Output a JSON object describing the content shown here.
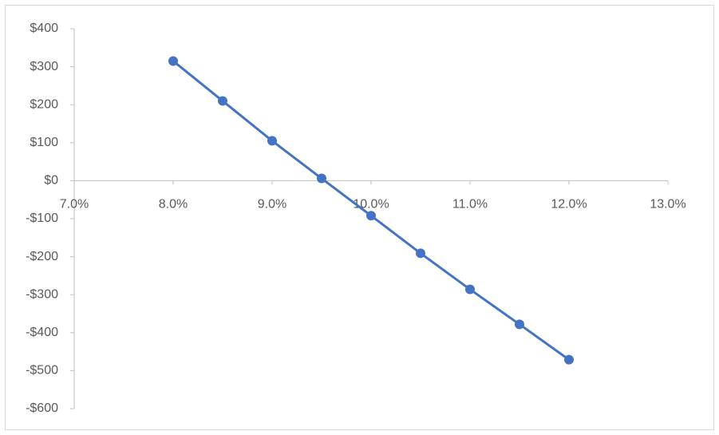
{
  "chart_data": {
    "type": "line",
    "x": [
      8.0,
      8.5,
      9.0,
      9.5,
      10.0,
      10.5,
      11.0,
      11.5,
      12.0
    ],
    "values": [
      315,
      210,
      105,
      6,
      -92,
      -191,
      -286,
      -378,
      -471
    ],
    "color": "#4472c4",
    "markers": true,
    "grid": false,
    "xlim": [
      7,
      13
    ],
    "xticks": [
      {
        "value": 7,
        "label": "7.0%"
      },
      {
        "value": 8,
        "label": "8.0%"
      },
      {
        "value": 9,
        "label": "9.0%"
      },
      {
        "value": 10,
        "label": "10.0%"
      },
      {
        "value": 11,
        "label": "11.0%"
      },
      {
        "value": 12,
        "label": "12.0%"
      },
      {
        "value": 13,
        "label": "13.0%"
      }
    ],
    "ylim": [
      -600,
      400
    ],
    "yticks": [
      {
        "value": -600,
        "label": "-$600"
      },
      {
        "value": -500,
        "label": "-$500"
      },
      {
        "value": -400,
        "label": "-$400"
      },
      {
        "value": -300,
        "label": "-$300"
      },
      {
        "value": -200,
        "label": "-$200"
      },
      {
        "value": -100,
        "label": "-$100"
      },
      {
        "value": 0,
        "label": "$0"
      },
      {
        "value": 100,
        "label": "$100"
      },
      {
        "value": 200,
        "label": "$200"
      },
      {
        "value": 300,
        "label": "$300"
      },
      {
        "value": 400,
        "label": "$400"
      }
    ]
  }
}
